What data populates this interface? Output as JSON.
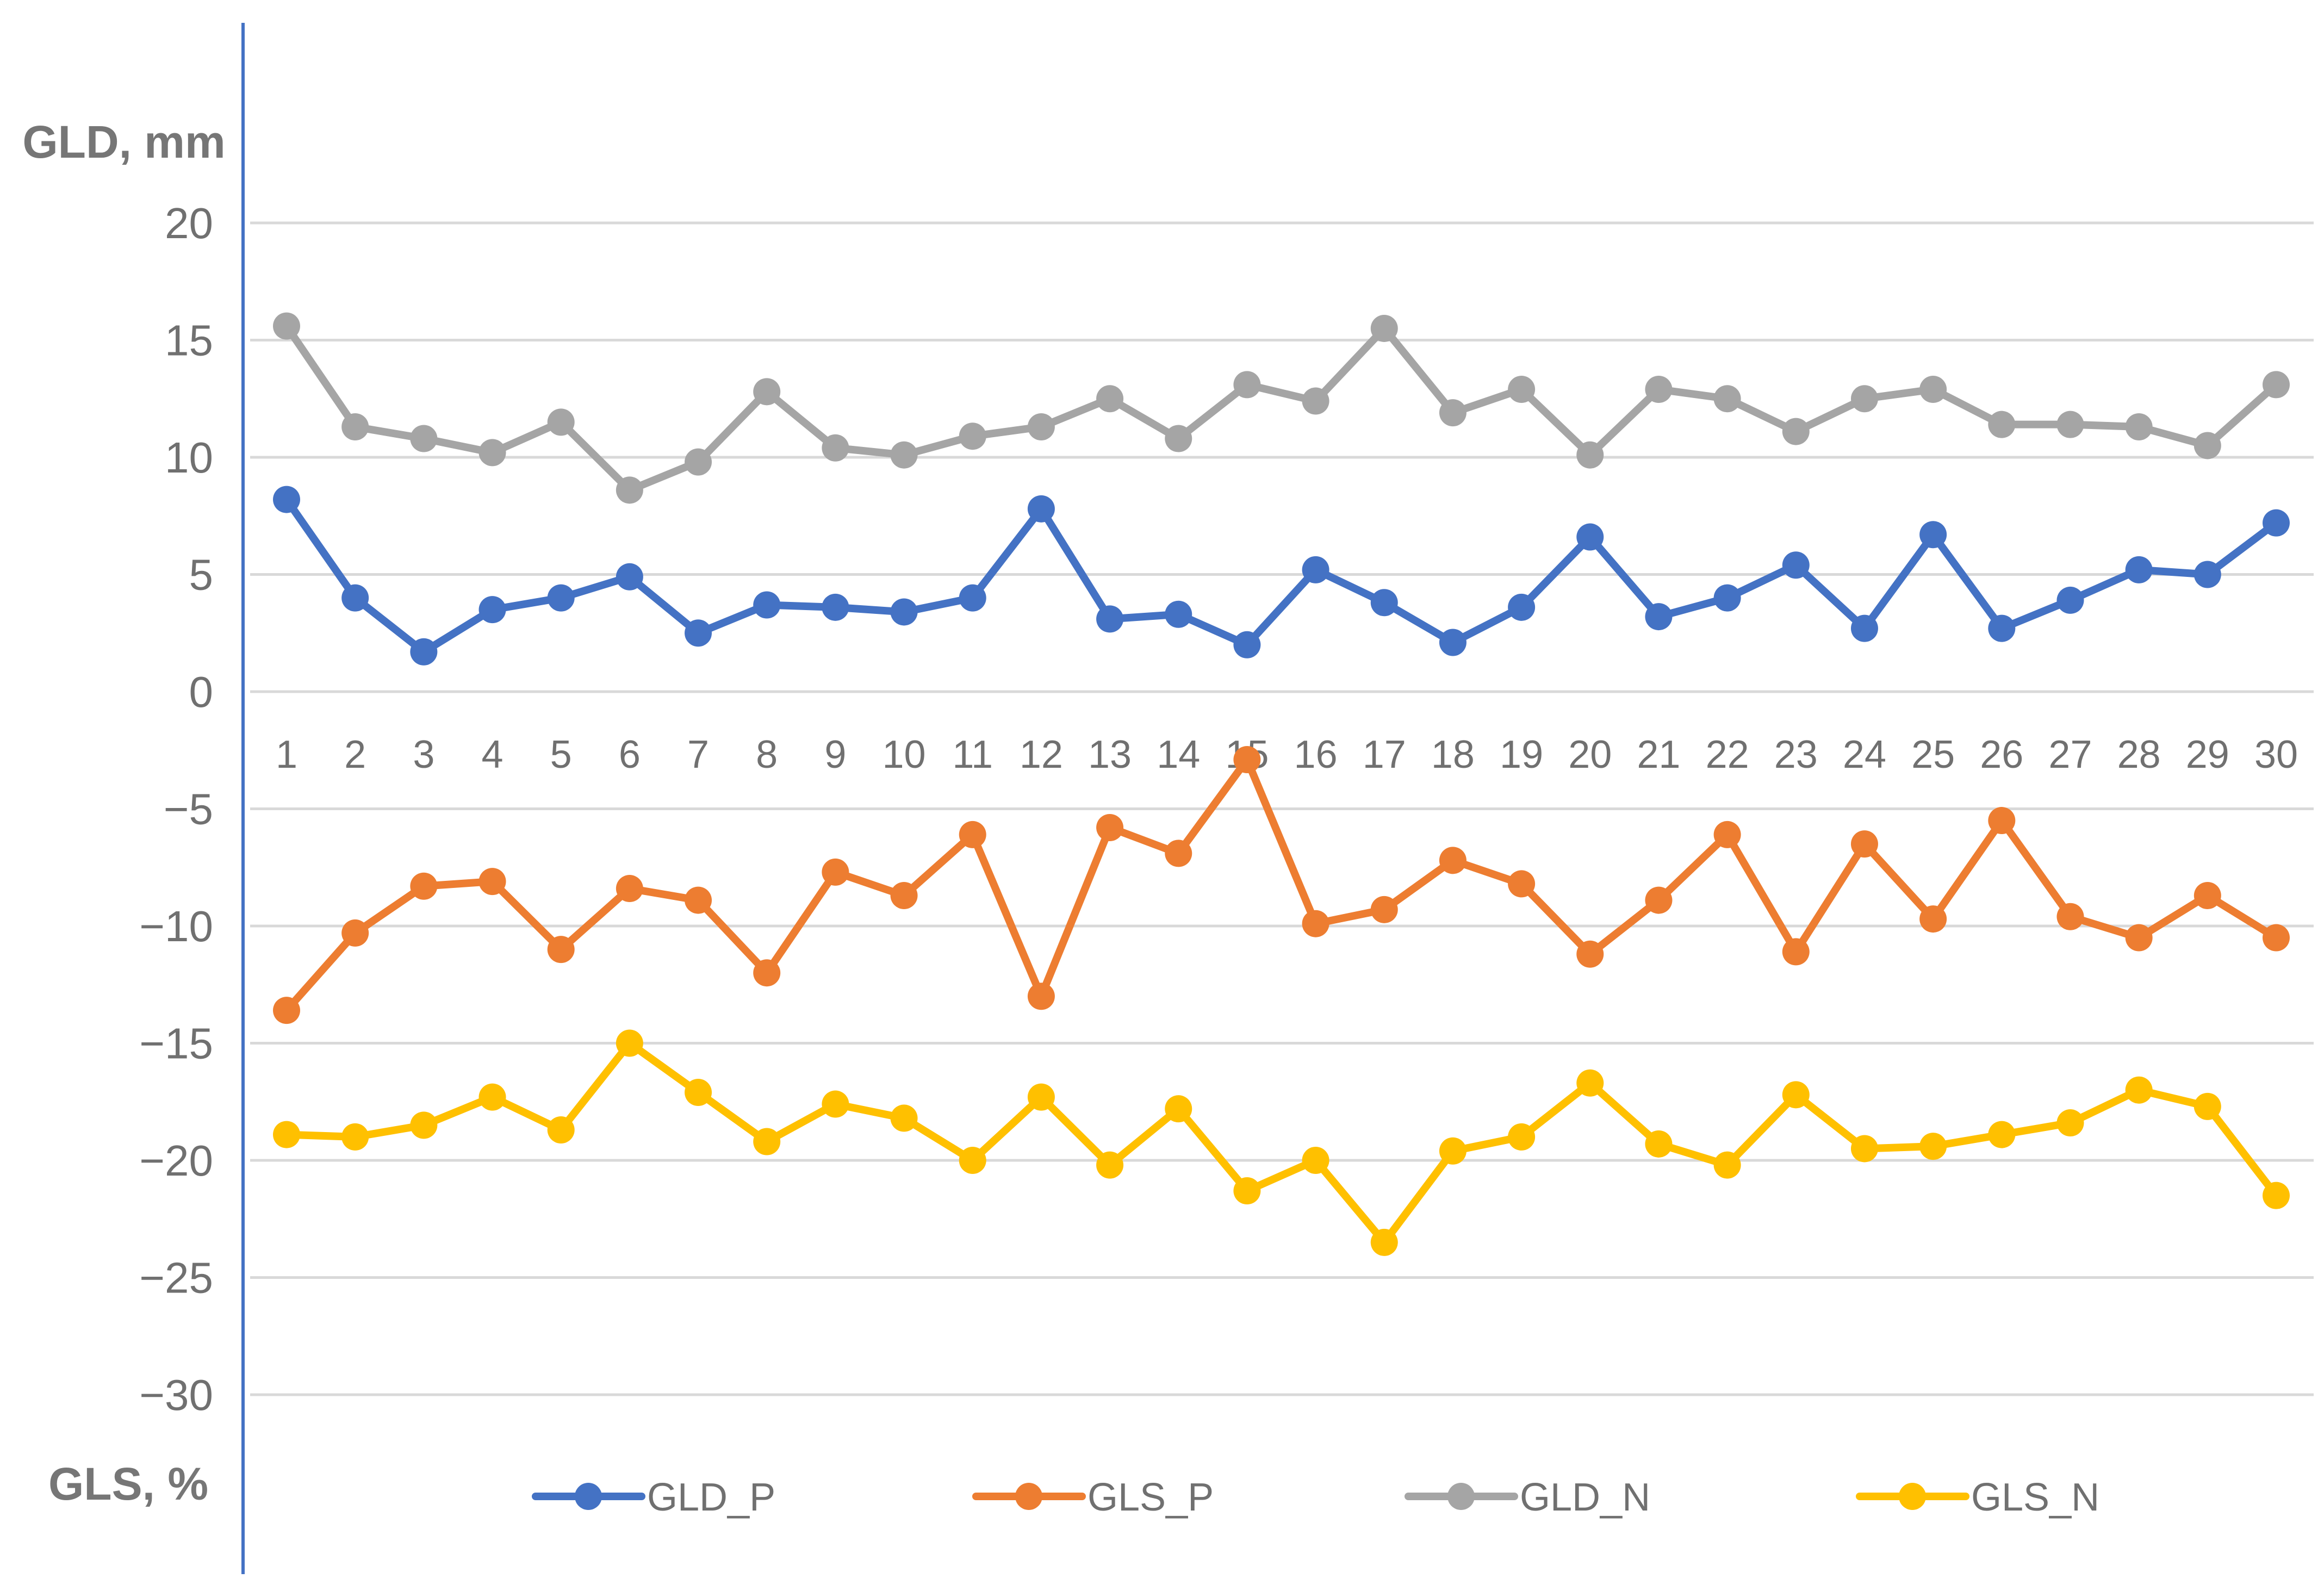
{
  "chart_data": {
    "type": "line",
    "title": "",
    "ylabel_top": "GLD, mm",
    "ylabel_bottom": "GLS, %",
    "ylim": [
      -30,
      20
    ],
    "yticks": [
      20,
      15,
      10,
      5,
      0,
      -5,
      -10,
      -15,
      -20,
      -25,
      -30
    ],
    "ytick_labels": [
      "20",
      "15",
      "10",
      "5",
      "0",
      "−5",
      "−10",
      "−15",
      "−20",
      "−25",
      "−30"
    ],
    "x": [
      1,
      2,
      3,
      4,
      5,
      6,
      7,
      8,
      9,
      10,
      11,
      12,
      13,
      14,
      15,
      16,
      17,
      18,
      19,
      20,
      21,
      22,
      23,
      24,
      25,
      26,
      27,
      28,
      29,
      30
    ],
    "x_labels": [
      "1",
      "2",
      "3",
      "4",
      "5",
      "6",
      "7",
      "8",
      "9",
      "10",
      "11",
      "12",
      "13",
      "14",
      "15",
      "16",
      "17",
      "18",
      "19",
      "20",
      "21",
      "22",
      "23",
      "24",
      "25",
      "26",
      "27",
      "28",
      "29",
      "30"
    ],
    "grid": true,
    "legend_position": "bottom",
    "series": [
      {
        "name": "GLD_P",
        "color": "#4472c4",
        "values": [
          8.2,
          4.0,
          1.7,
          3.5,
          4.0,
          4.9,
          2.5,
          3.7,
          3.6,
          3.4,
          4.0,
          7.8,
          3.1,
          3.3,
          2.0,
          5.2,
          3.8,
          2.1,
          3.6,
          6.6,
          3.2,
          4.0,
          5.4,
          2.7,
          6.7,
          2.7,
          3.9,
          5.2,
          5.0,
          7.2
        ]
      },
      {
        "name": "GLS_P",
        "color": "#ed7d31",
        "values": [
          -13.6,
          -10.3,
          -8.3,
          -8.1,
          -11.0,
          -8.4,
          -8.9,
          -12.0,
          -7.7,
          -8.7,
          -6.1,
          -13.0,
          -5.8,
          -6.9,
          -2.9,
          -9.9,
          -9.3,
          -7.2,
          -8.2,
          -11.2,
          -8.9,
          -6.1,
          -11.1,
          -6.5,
          -9.7,
          -5.5,
          -9.6,
          -10.5,
          -8.7,
          -10.5
        ]
      },
      {
        "name": "GLD_N",
        "color": "#a5a5a5",
        "values": [
          15.6,
          11.3,
          10.8,
          10.2,
          11.5,
          8.6,
          9.8,
          12.8,
          10.4,
          10.1,
          10.9,
          11.3,
          12.5,
          10.8,
          13.1,
          12.4,
          15.5,
          11.9,
          12.9,
          10.1,
          12.9,
          12.5,
          11.1,
          12.5,
          12.9,
          11.4,
          11.4,
          11.3,
          10.5,
          13.1
        ]
      },
      {
        "name": "GLS_N",
        "color": "#ffc000",
        "values": [
          -18.9,
          -19.0,
          -18.5,
          -17.3,
          -18.7,
          -15.0,
          -17.1,
          -19.2,
          -17.6,
          -18.2,
          -20.0,
          -17.3,
          -20.2,
          -17.8,
          -21.3,
          -20.0,
          -23.5,
          -19.6,
          -19.0,
          -16.7,
          -19.3,
          -20.2,
          -17.2,
          -19.5,
          -19.4,
          -18.9,
          -18.4,
          -17.0,
          -17.7,
          -21.5
        ]
      }
    ]
  }
}
